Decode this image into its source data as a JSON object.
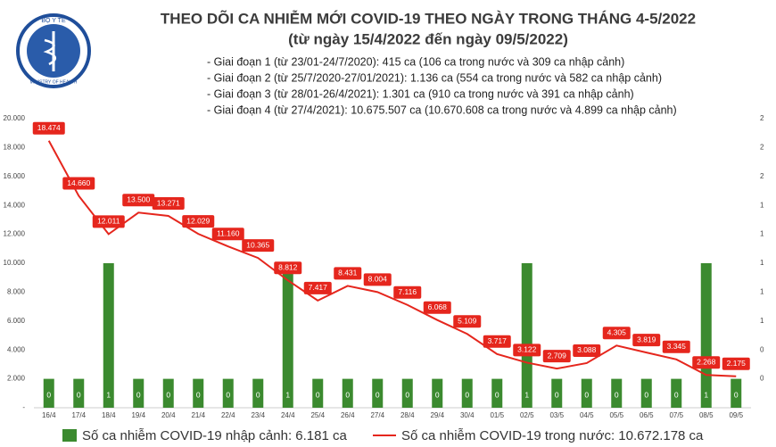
{
  "chart_data": {
    "type": "bar-line",
    "logo_text": [
      "BỘ Y TẾ",
      "MINISTRY OF HEALTH"
    ],
    "title": "THEO DÕI CA NHIỄM MỚI COVID-19 THEO NGÀY TRONG THÁNG 4-5/2022",
    "subtitle": "(từ ngày 15/4/2022 đến ngày 09/5/2022)",
    "annotations": [
      "- Giai đoạn 1 (từ 23/01-24/7/2020): 415 ca (106 ca trong nước và 309 ca nhập cảnh)",
      "- Giai đoạn 2 (từ 25/7/2020-27/01/2021): 1.136 ca (554 ca trong nước và 582 ca nhập cảnh)",
      "- Giai đoạn 3 (từ 28/01-26/4/2021): 1.301 ca (910 ca trong nước và 391 ca nhập cảnh)",
      "- Giai đoạn 4 (từ 27/4/2021): 10.675.507 ca (10.670.608 ca trong nước và 4.899 ca nhập cảnh)"
    ],
    "categories": [
      "16/4",
      "17/4",
      "18/4",
      "19/4",
      "20/4",
      "21/4",
      "22/4",
      "23/4",
      "24/4",
      "25/4",
      "26/4",
      "27/4",
      "28/4",
      "29/4",
      "30/4",
      "01/5",
      "02/5",
      "03/5",
      "04/5",
      "05/5",
      "06/5",
      "07/5",
      "08/5",
      "09/5"
    ],
    "series": [
      {
        "name": "Số ca nhiễm COVID-19 nhập cảnh: 6.181 ca",
        "type": "bar",
        "axis": "y2",
        "color": "#3b8a2f",
        "values": [
          0,
          0,
          1,
          0,
          0,
          0,
          0,
          0,
          1,
          0,
          0,
          0,
          0,
          0,
          0,
          0,
          1,
          0,
          0,
          0,
          0,
          0,
          1,
          0
        ]
      },
      {
        "name": "Số ca nhiễm COVID-19 trong nước: 10.672.178 ca",
        "type": "line",
        "color": "#e5261d",
        "values": [
          18474,
          14660,
          12011,
          13500,
          13271,
          12029,
          11160,
          10365,
          8812,
          7417,
          8431,
          8004,
          7116,
          6068,
          5109,
          3717,
          3122,
          2709,
          3088,
          4305,
          3819,
          3345,
          2268,
          2175
        ],
        "value_labels": [
          "18.474",
          "14.660",
          "12.011",
          "13.500",
          "13.271",
          "12.029",
          "11.160",
          "10.365",
          "8.812",
          "7.417",
          "8.431",
          "8.004",
          "7.116",
          "6.068",
          "5.109",
          "3.717",
          "3.122",
          "2.709",
          "3.088",
          "4.305",
          "3.819",
          "3.345",
          "2.268",
          "2.175"
        ]
      }
    ],
    "ylim": [
      0,
      20000
    ],
    "yticks": [
      {
        "value": 0,
        "label": "-"
      },
      {
        "value": 2000,
        "label": "2.000"
      },
      {
        "value": 4000,
        "label": "4.000"
      },
      {
        "value": 6000,
        "label": "6.000"
      },
      {
        "value": 8000,
        "label": "8.000"
      },
      {
        "value": 10000,
        "label": "10.000"
      },
      {
        "value": 12000,
        "label": "12.000"
      },
      {
        "value": 14000,
        "label": "14.000"
      },
      {
        "value": 16000,
        "label": "16.000"
      },
      {
        "value": 18000,
        "label": "18.000"
      },
      {
        "value": 20000,
        "label": "20.000"
      }
    ],
    "y2lim": [
      -0.25,
      2.25
    ],
    "y2ticks": [
      0,
      {
        "value": 0.25,
        "label": "0"
      },
      {
        "value": 0.5,
        "label": "1"
      },
      {
        "value": 0.75,
        "label": "1"
      },
      1,
      {
        "value": 1.25,
        "label": "1"
      },
      {
        "value": 1.5,
        "label": "1"
      },
      {
        "value": 1.75,
        "label": "2"
      },
      2,
      {
        "value": 2.25,
        "label": "2"
      }
    ],
    "grid": false
  }
}
